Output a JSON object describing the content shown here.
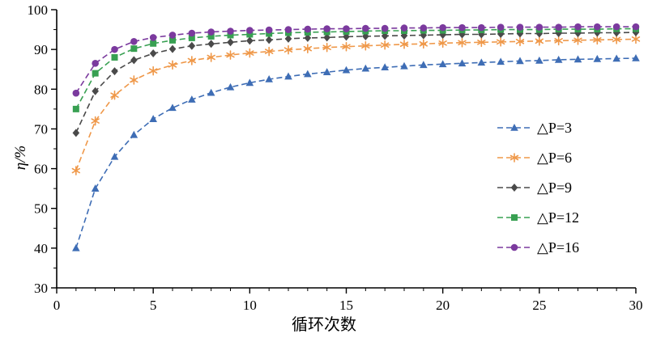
{
  "chart_data": {
    "type": "line",
    "title": "",
    "xlabel": "循环次数",
    "ylabel": "η/%",
    "xlim": [
      0,
      30
    ],
    "ylim": [
      30,
      100
    ],
    "x_ticks": [
      0,
      5,
      10,
      15,
      20,
      25,
      30
    ],
    "y_ticks": [
      30,
      40,
      50,
      60,
      70,
      80,
      90,
      100
    ],
    "grid": false,
    "line_style": "dashed",
    "legend_position": "right-center",
    "x": [
      1,
      2,
      3,
      4,
      5,
      6,
      7,
      8,
      9,
      10,
      11,
      12,
      13,
      14,
      15,
      16,
      17,
      18,
      19,
      20,
      21,
      22,
      23,
      24,
      25,
      26,
      27,
      28,
      29,
      30
    ],
    "series": [
      {
        "name": "△P=3",
        "color": "#3e6db5",
        "marker": "triangle",
        "values": [
          40.0,
          55.0,
          63.0,
          68.5,
          72.5,
          75.3,
          77.4,
          79.1,
          80.5,
          81.6,
          82.5,
          83.2,
          83.8,
          84.3,
          84.8,
          85.2,
          85.5,
          85.8,
          86.1,
          86.3,
          86.5,
          86.7,
          86.9,
          87.1,
          87.2,
          87.4,
          87.5,
          87.6,
          87.7,
          87.8
        ]
      },
      {
        "name": "△P=6",
        "color": "#ef9849",
        "marker": "asterisk",
        "values": [
          59.5,
          72.0,
          78.5,
          82.3,
          84.6,
          86.1,
          87.2,
          88.0,
          88.6,
          89.1,
          89.5,
          89.9,
          90.2,
          90.5,
          90.7,
          90.9,
          91.1,
          91.3,
          91.4,
          91.6,
          91.7,
          91.8,
          91.9,
          92.0,
          92.1,
          92.2,
          92.3,
          92.4,
          92.5,
          92.6
        ]
      },
      {
        "name": "△P=9",
        "color": "#4a4a4a",
        "marker": "diamond",
        "values": [
          69.0,
          79.5,
          84.5,
          87.3,
          89.0,
          90.1,
          90.9,
          91.4,
          91.8,
          92.2,
          92.4,
          92.7,
          92.9,
          93.0,
          93.2,
          93.3,
          93.4,
          93.5,
          93.6,
          93.7,
          93.8,
          93.8,
          93.9,
          94.0,
          94.0,
          94.1,
          94.1,
          94.2,
          94.2,
          94.3
        ]
      },
      {
        "name": "△P=12",
        "color": "#38a052",
        "marker": "square",
        "values": [
          75.0,
          84.0,
          88.0,
          90.2,
          91.5,
          92.3,
          92.9,
          93.3,
          93.6,
          93.8,
          94.0,
          94.2,
          94.3,
          94.4,
          94.5,
          94.6,
          94.7,
          94.7,
          94.8,
          94.8,
          94.9,
          94.9,
          95.0,
          95.0,
          95.0,
          95.1,
          95.1,
          95.1,
          95.2,
          95.2
        ]
      },
      {
        "name": "△P=16",
        "color": "#7b3a9e",
        "marker": "circle",
        "values": [
          79.0,
          86.5,
          90.0,
          92.0,
          93.0,
          93.6,
          94.1,
          94.4,
          94.6,
          94.8,
          94.9,
          95.0,
          95.1,
          95.2,
          95.2,
          95.3,
          95.3,
          95.4,
          95.4,
          95.5,
          95.5,
          95.5,
          95.6,
          95.6,
          95.6,
          95.6,
          95.7,
          95.7,
          95.7,
          95.7
        ]
      }
    ]
  }
}
